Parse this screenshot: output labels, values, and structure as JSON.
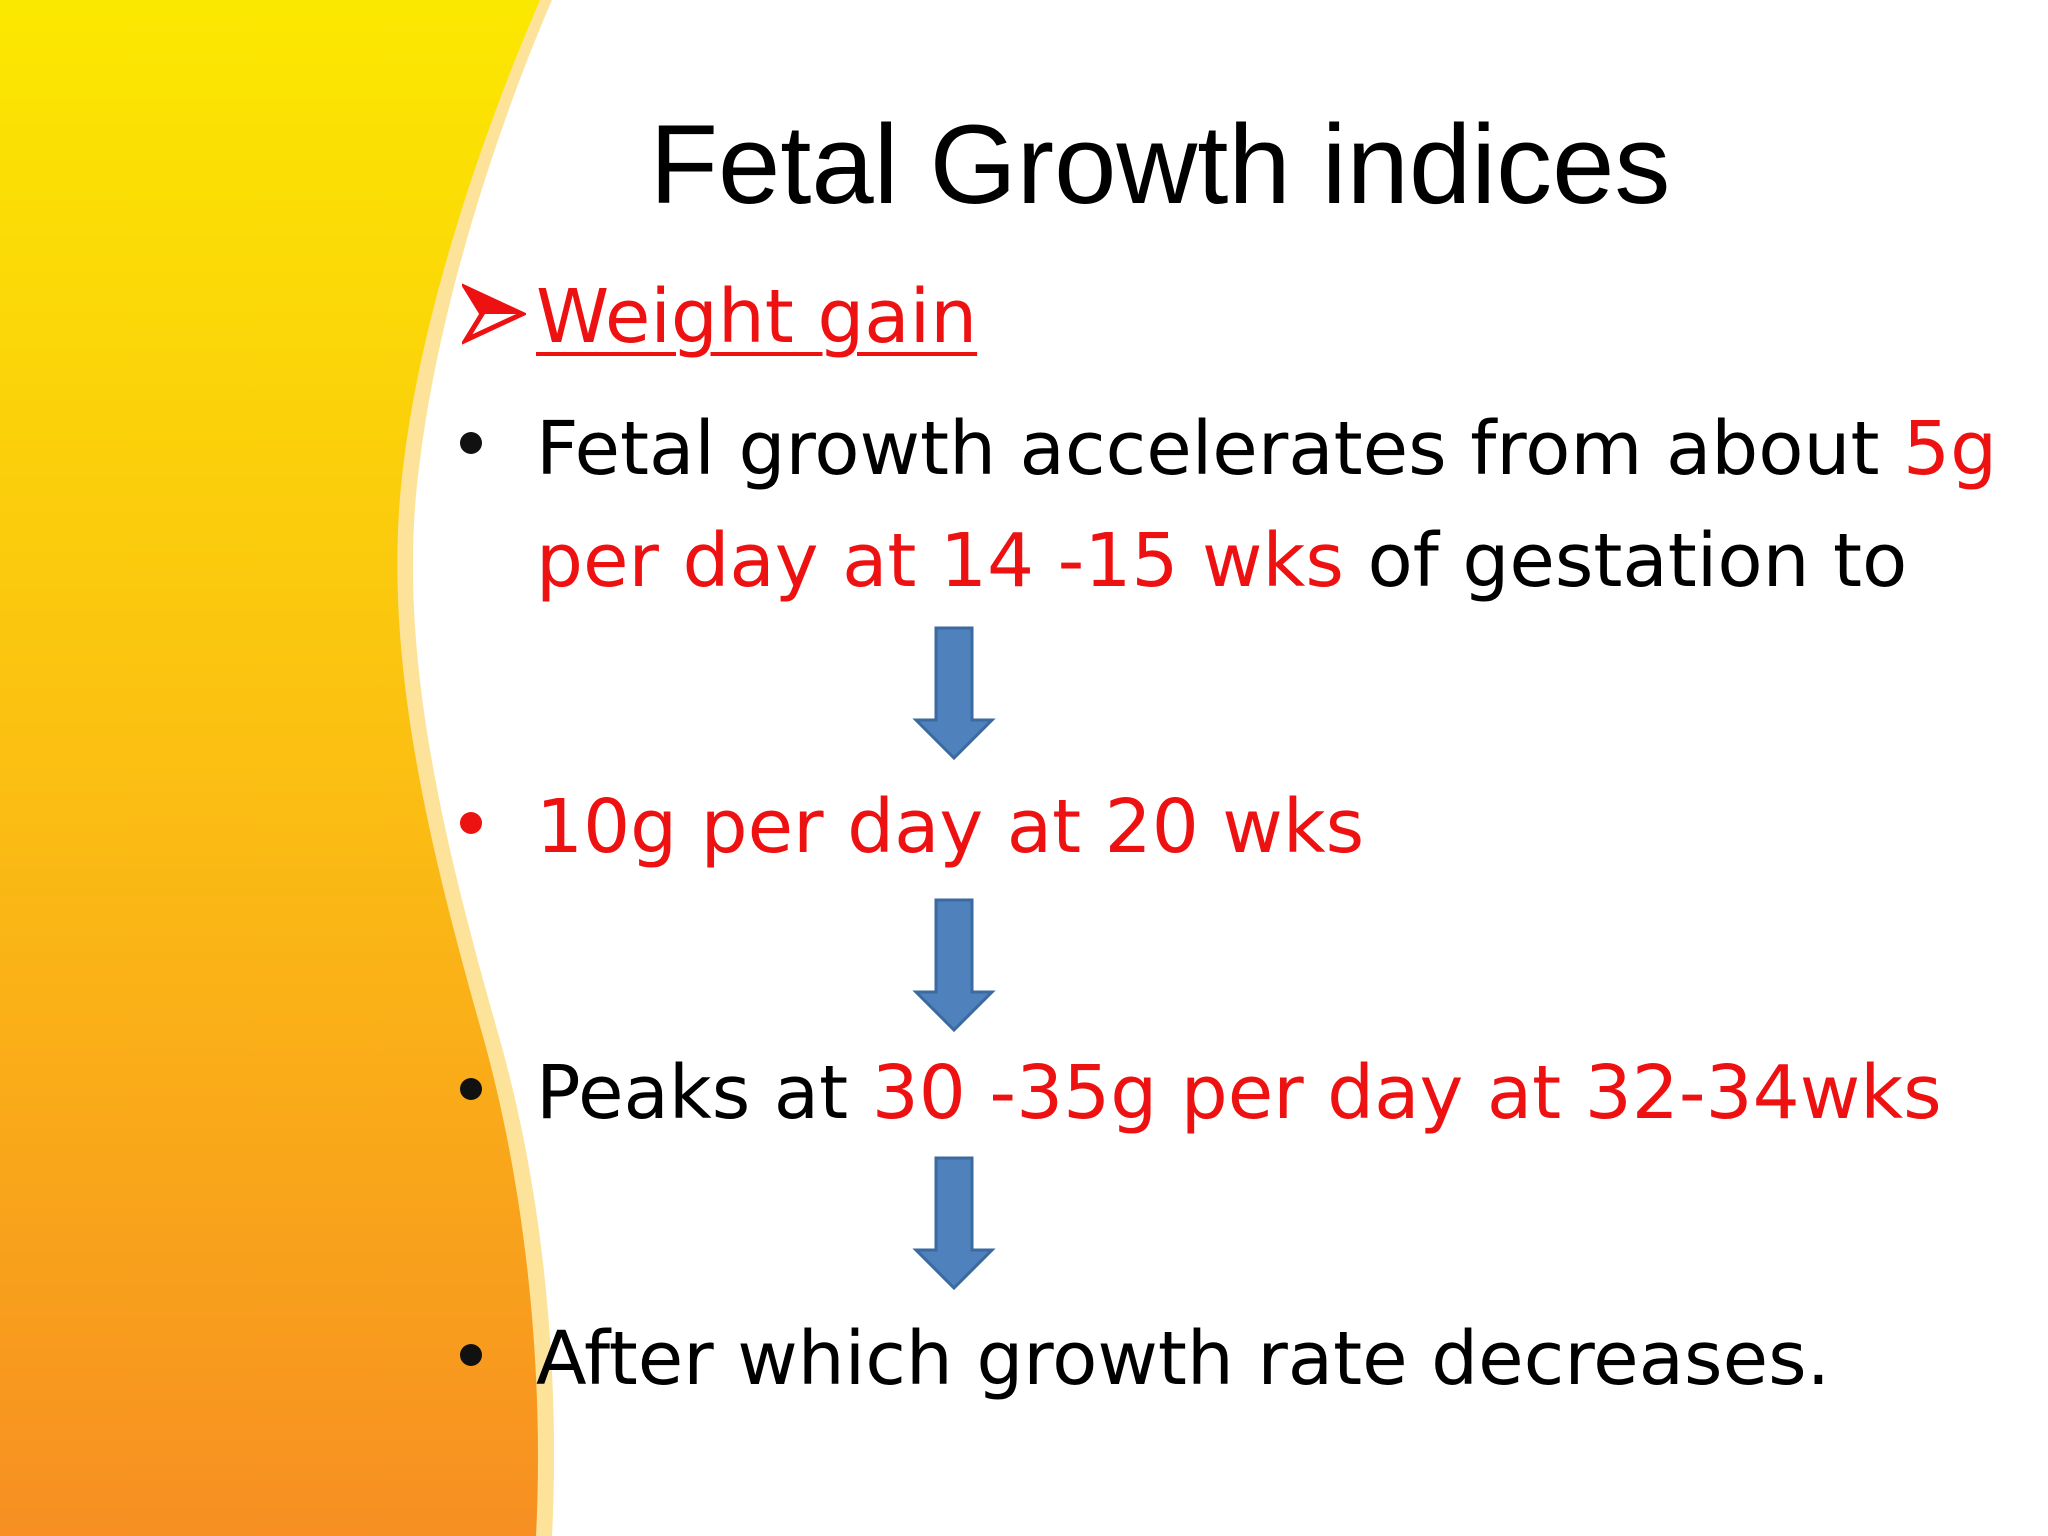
{
  "slide": {
    "title": "Fetal Growth indices",
    "heading": "Weight gain",
    "bullets": [
      {
        "line1_black": "Fetal growth accelerates from about ",
        "line1_red": "5g",
        "line2_red": "per day at 14 -15 wks",
        "line2_black": " of gestation to"
      },
      {
        "text_red": "10g per day at 20 wks"
      },
      {
        "text_black": "Peaks at ",
        "text_red": "30 -35g per day at 32-34wks"
      },
      {
        "text_black": "After which growth rate decreases."
      }
    ]
  },
  "colors": {
    "accent_red": "#ee1111",
    "arrow_blue": "#4f81bd",
    "band_top": "#fbe800",
    "band_bottom": "#f78f22"
  },
  "icons": {
    "heading_marker": "arrowhead-bullet-icon",
    "flow_arrow": "down-arrow-icon"
  }
}
